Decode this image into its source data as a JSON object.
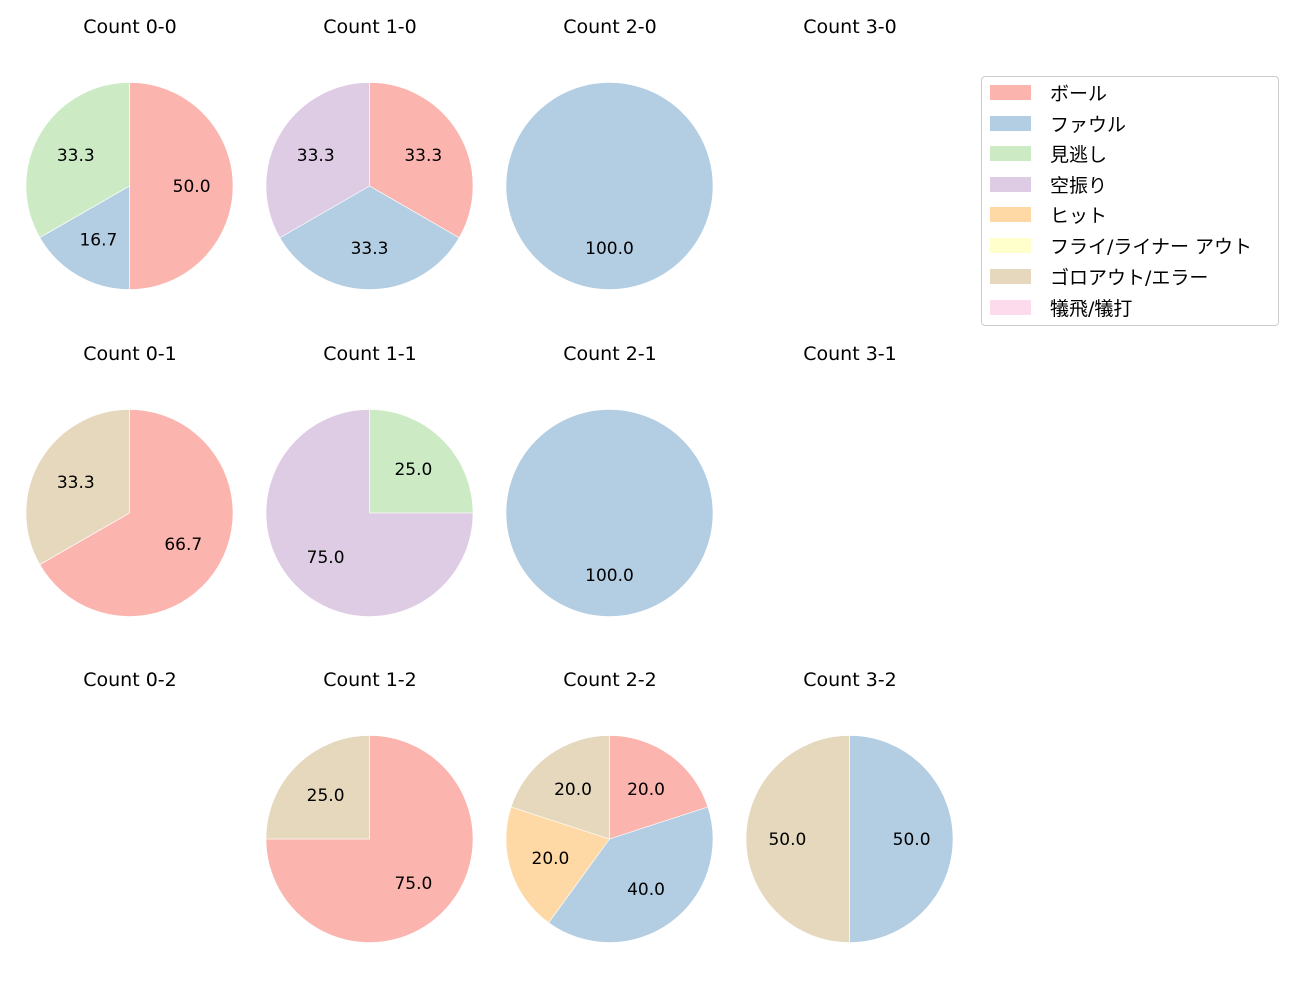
{
  "chart_data": {
    "type": "pie",
    "direction": "clockwise",
    "start_angle": "top (90deg)",
    "legend": {
      "position": "upper right",
      "entries": [
        {
          "label": "ボール",
          "color": "#fbb4ae"
        },
        {
          "label": "ファウル",
          "color": "#b3cde3"
        },
        {
          "label": "見逃し",
          "color": "#ccebc5"
        },
        {
          "label": "空振り",
          "color": "#decbe4"
        },
        {
          "label": "ヒット",
          "color": "#fed9a6"
        },
        {
          "label": "フライ/ライナー アウト",
          "color": "#ffffcc"
        },
        {
          "label": "ゴロアウト/エラー",
          "color": "#e5d8bd"
        },
        {
          "label": "犠飛/犠打",
          "color": "#fddaec"
        }
      ]
    },
    "charts": [
      {
        "title": "Count 0-0",
        "row": 0,
        "col": 0,
        "slices": [
          {
            "label": "ボール",
            "value": 50.0
          },
          {
            "label": "ファウル",
            "value": 16.7
          },
          {
            "label": "見逃し",
            "value": 33.3
          }
        ]
      },
      {
        "title": "Count 1-0",
        "row": 0,
        "col": 1,
        "slices": [
          {
            "label": "ボール",
            "value": 33.3
          },
          {
            "label": "ファウル",
            "value": 33.3
          },
          {
            "label": "空振り",
            "value": 33.3
          }
        ]
      },
      {
        "title": "Count 2-0",
        "row": 0,
        "col": 2,
        "slices": [
          {
            "label": "ファウル",
            "value": 100.0
          }
        ]
      },
      {
        "title": "Count 3-0",
        "row": 0,
        "col": 3,
        "slices": []
      },
      {
        "title": "Count 0-1",
        "row": 1,
        "col": 0,
        "slices": [
          {
            "label": "ボール",
            "value": 66.7
          },
          {
            "label": "ゴロアウト/エラー",
            "value": 33.3
          }
        ]
      },
      {
        "title": "Count 1-1",
        "row": 1,
        "col": 1,
        "slices": [
          {
            "label": "見逃し",
            "value": 25.0
          },
          {
            "label": "空振り",
            "value": 75.0
          }
        ]
      },
      {
        "title": "Count 2-1",
        "row": 1,
        "col": 2,
        "slices": [
          {
            "label": "ファウル",
            "value": 100.0
          }
        ]
      },
      {
        "title": "Count 3-1",
        "row": 1,
        "col": 3,
        "slices": []
      },
      {
        "title": "Count 0-2",
        "row": 2,
        "col": 0,
        "slices": []
      },
      {
        "title": "Count 1-2",
        "row": 2,
        "col": 1,
        "slices": [
          {
            "label": "ボール",
            "value": 75.0
          },
          {
            "label": "ゴロアウト/エラー",
            "value": 25.0
          }
        ]
      },
      {
        "title": "Count 2-2",
        "row": 2,
        "col": 2,
        "slices": [
          {
            "label": "ボール",
            "value": 20.0
          },
          {
            "label": "ファウル",
            "value": 40.0
          },
          {
            "label": "ヒット",
            "value": 20.0
          },
          {
            "label": "ゴロアウト/エラー",
            "value": 20.0
          }
        ]
      },
      {
        "title": "Count 3-2",
        "row": 2,
        "col": 3,
        "slices": [
          {
            "label": "ファウル",
            "value": 50.0
          },
          {
            "label": "ゴロアウト/エラー",
            "value": 50.0
          }
        ]
      }
    ]
  }
}
